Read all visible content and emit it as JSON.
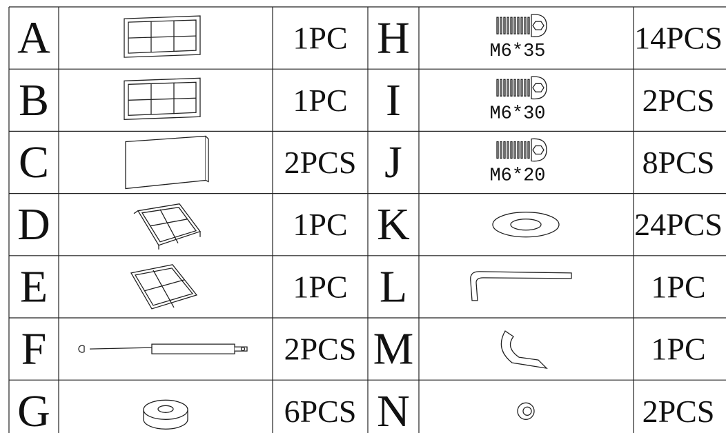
{
  "table": {
    "rows": [
      {
        "left": {
          "letter": "A",
          "qty": "1PC"
        },
        "right": {
          "letter": "H",
          "spec": "M6*35",
          "qty": "14PCS"
        }
      },
      {
        "left": {
          "letter": "B",
          "qty": "1PC"
        },
        "right": {
          "letter": "I",
          "spec": "M6*30",
          "qty": "2PCS"
        }
      },
      {
        "left": {
          "letter": "C",
          "qty": "2PCS"
        },
        "right": {
          "letter": "J",
          "spec": "M6*20",
          "qty": "8PCS"
        }
      },
      {
        "left": {
          "letter": "D",
          "qty": "1PC"
        },
        "right": {
          "letter": "K",
          "qty": "24PCS"
        }
      },
      {
        "left": {
          "letter": "E",
          "qty": "1PC"
        },
        "right": {
          "letter": "L",
          "qty": "1PC"
        }
      },
      {
        "left": {
          "letter": "F",
          "qty": "2PCS"
        },
        "right": {
          "letter": "M",
          "qty": "1PC"
        }
      },
      {
        "left": {
          "letter": "G",
          "qty": "6PCS"
        },
        "right": {
          "letter": "N",
          "qty": "2PCS"
        }
      }
    ]
  }
}
